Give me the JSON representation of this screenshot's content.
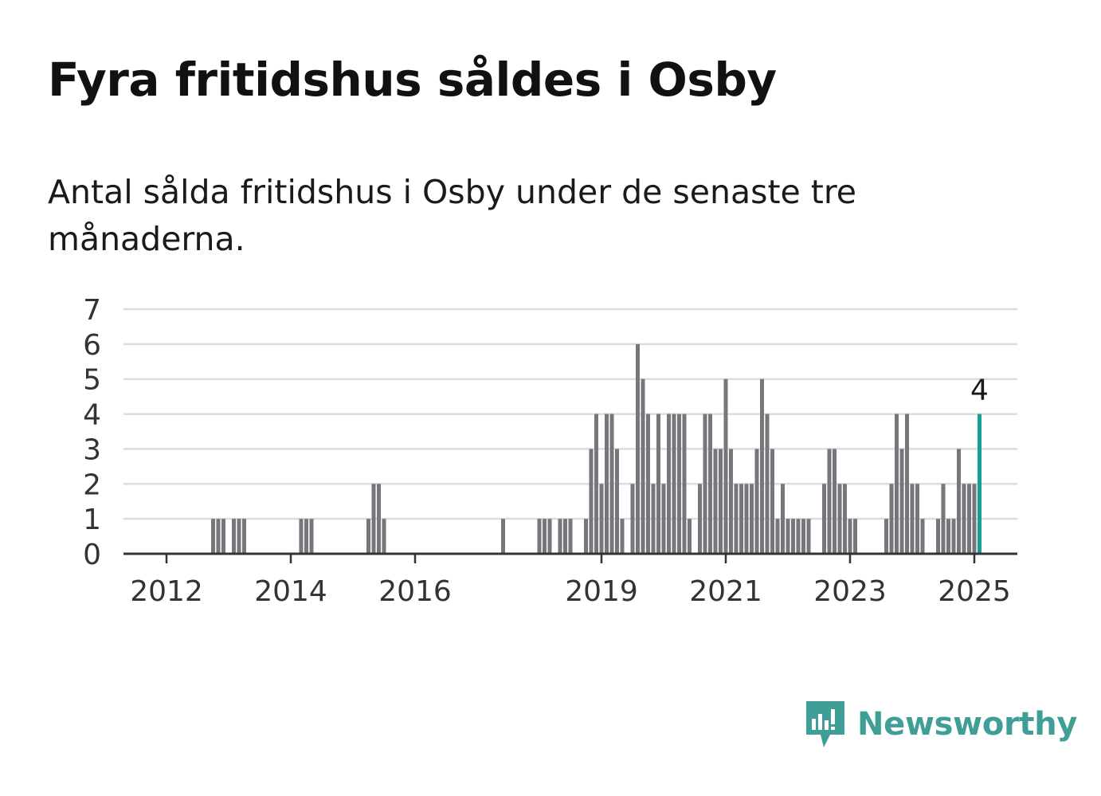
{
  "title": "Fyra fritidshus såldes i Osby",
  "subtitle": "Antal sålda fritidshus i Osby under de senaste tre månaderna.",
  "brand": {
    "name": "Newsworthy",
    "icon": "newsworthy-logo-icon",
    "color": "#3f9e96"
  },
  "colors": {
    "bar": "#76767c",
    "highlight": "#1a9e94",
    "grid": "#dcdcdc",
    "axis": "#333333"
  },
  "chart_data": {
    "type": "bar",
    "xlabel": "",
    "ylabel": "",
    "ylim": [
      0,
      7
    ],
    "yticks": [
      "0",
      "1",
      "2",
      "3",
      "4",
      "5",
      "6",
      "7"
    ],
    "xticks": [
      {
        "label": "2012",
        "year": 2012
      },
      {
        "label": "2014",
        "year": 2014
      },
      {
        "label": "2016",
        "year": 2016
      },
      {
        "label": "2019",
        "year": 2019
      },
      {
        "label": "2021",
        "year": 2021
      },
      {
        "label": "2023",
        "year": 2023
      },
      {
        "label": "2025",
        "year": 2025
      }
    ],
    "grid": true,
    "x_start": "2011-06",
    "x_end": "2025-06",
    "highlight_label": "4",
    "series": [
      {
        "categories": [
          "2012-10",
          "2012-11",
          "2012-12",
          "2013-02",
          "2013-03",
          "2013-04",
          "2014-03",
          "2014-04",
          "2014-05",
          "2015-04",
          "2015-05",
          "2015-06",
          "2015-07",
          "2017-06",
          "2018-01",
          "2018-02",
          "2018-03",
          "2018-05",
          "2018-06",
          "2018-07",
          "2018-10",
          "2018-11",
          "2018-12",
          "2019-01",
          "2019-02",
          "2019-03",
          "2019-04",
          "2019-05",
          "2019-07",
          "2019-08",
          "2019-09",
          "2019-10",
          "2019-11",
          "2019-12",
          "2020-01",
          "2020-02",
          "2020-03",
          "2020-04",
          "2020-05",
          "2020-06",
          "2020-08",
          "2020-09",
          "2020-10",
          "2020-11",
          "2020-12",
          "2021-01",
          "2021-02",
          "2021-03",
          "2021-04",
          "2021-05",
          "2021-06",
          "2021-07",
          "2021-08",
          "2021-09",
          "2021-10",
          "2021-11",
          "2021-12",
          "2022-01",
          "2022-02",
          "2022-03",
          "2022-04",
          "2022-05",
          "2022-08",
          "2022-09",
          "2022-10",
          "2022-11",
          "2022-12",
          "2023-01",
          "2023-02",
          "2023-08",
          "2023-09",
          "2023-10",
          "2023-11",
          "2023-12",
          "2024-01",
          "2024-02",
          "2024-03",
          "2024-06",
          "2024-07",
          "2024-08",
          "2024-09",
          "2024-10",
          "2024-11",
          "2024-12",
          "2025-01",
          "2025-02"
        ],
        "values": [
          1,
          1,
          1,
          1,
          1,
          1,
          1,
          1,
          1,
          1,
          2,
          2,
          1,
          1,
          1,
          1,
          1,
          1,
          1,
          1,
          1,
          3,
          4,
          2,
          4,
          4,
          3,
          1,
          2,
          6,
          5,
          4,
          2,
          4,
          2,
          4,
          4,
          4,
          4,
          1,
          2,
          4,
          4,
          3,
          3,
          5,
          3,
          2,
          2,
          2,
          2,
          3,
          5,
          4,
          3,
          1,
          2,
          1,
          1,
          1,
          1,
          1,
          2,
          3,
          3,
          2,
          2,
          1,
          1,
          1,
          2,
          4,
          3,
          4,
          2,
          2,
          1,
          1,
          2,
          1,
          1,
          3,
          2,
          2,
          2,
          4
        ]
      }
    ]
  }
}
